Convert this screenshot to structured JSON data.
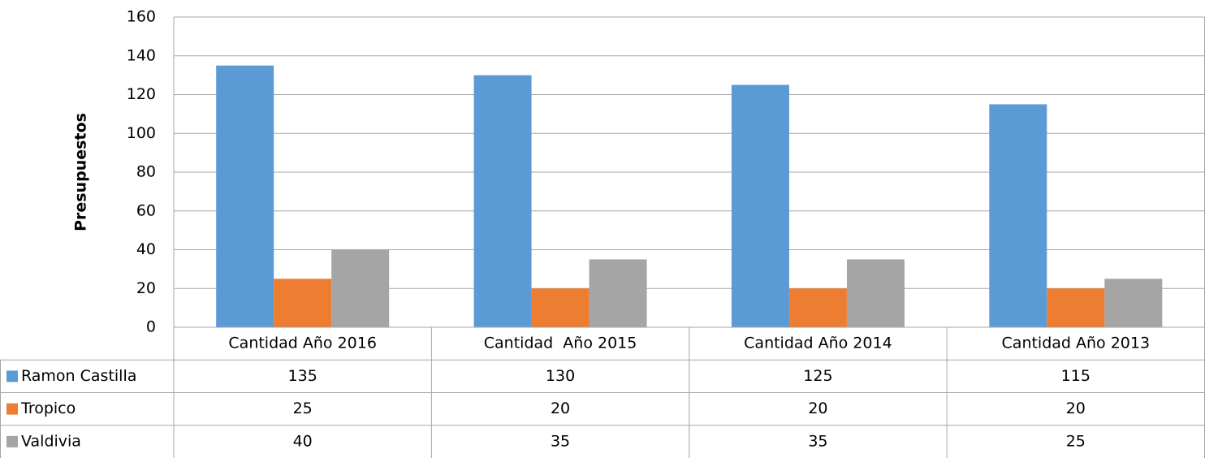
{
  "chart_data": {
    "type": "bar",
    "y_label": "Presupuestos",
    "categories": [
      "Cantidad Año 2016",
      "Cantidad  Año 2015",
      "Cantidad Año 2014",
      "Cantidad Año 2013"
    ],
    "series": [
      {
        "name": "Ramon Castilla",
        "color": "#5b9bd5",
        "values": [
          135,
          130,
          125,
          115
        ]
      },
      {
        "name": "Tropico",
        "color": "#ed7d31",
        "values": [
          25,
          20,
          20,
          20
        ]
      },
      {
        "name": "Valdivia",
        "color": "#a5a5a5",
        "values": [
          40,
          35,
          35,
          25
        ]
      }
    ],
    "ylim": [
      0,
      160
    ],
    "yticks": [
      0,
      20,
      40,
      60,
      80,
      100,
      120,
      140,
      160
    ],
    "grid": true,
    "data_table": true
  }
}
